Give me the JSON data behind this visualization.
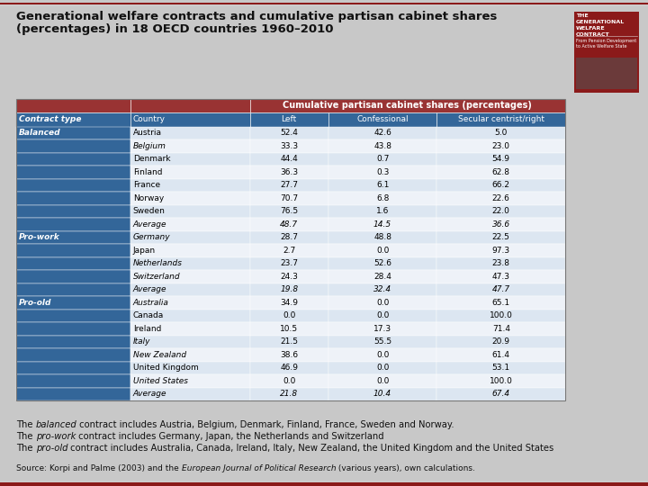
{
  "title_line1": "Generational welfare contracts and cumulative partisan cabinet shares",
  "title_line2": "(percentages) in 18 OECD countries 1960–2010",
  "bg_color": "#c8c8c8",
  "header_span_text": "Cumulative partisan cabinet shares (percentages)",
  "col_headers": [
    "Contract type",
    "Country",
    "Left",
    "Confessional",
    "Secular centrist/right"
  ],
  "sections": [
    {
      "label": "Balanced",
      "rows": [
        [
          "Austria",
          "52.4",
          "42.6",
          "5.0",
          false
        ],
        [
          "Belgium",
          "33.3",
          "43.8",
          "23.0",
          true
        ],
        [
          "Denmark",
          "44.4",
          "0.7",
          "54.9",
          false
        ],
        [
          "Finland",
          "36.3",
          "0.3",
          "62.8",
          false
        ],
        [
          "France",
          "27.7",
          "6.1",
          "66.2",
          false
        ],
        [
          "Norway",
          "70.7",
          "6.8",
          "22.6",
          false
        ],
        [
          "Sweden",
          "76.5",
          "1.6",
          "22.0",
          false
        ],
        [
          "Average",
          "48.7",
          "14.5",
          "36.6",
          true
        ]
      ]
    },
    {
      "label": "Pro-work",
      "rows": [
        [
          "Germany",
          "28.7",
          "48.8",
          "22.5",
          true
        ],
        [
          "Japan",
          "2.7",
          "0.0",
          "97.3",
          false
        ],
        [
          "Netherlands",
          "23.7",
          "52.6",
          "23.8",
          true
        ],
        [
          "Switzerland",
          "24.3",
          "28.4",
          "47.3",
          true
        ],
        [
          "Average",
          "19.8",
          "32.4",
          "47.7",
          true
        ]
      ]
    },
    {
      "label": "Pro-old",
      "rows": [
        [
          "Australia",
          "34.9",
          "0.0",
          "65.1",
          true
        ],
        [
          "Canada",
          "0.0",
          "0.0",
          "100.0",
          false
        ],
        [
          "Ireland",
          "10.5",
          "17.3",
          "71.4",
          false
        ],
        [
          "Italy",
          "21.5",
          "55.5",
          "20.9",
          true
        ],
        [
          "New Zealand",
          "38.6",
          "0.0",
          "61.4",
          true
        ],
        [
          "United Kingdom",
          "46.9",
          "0.0",
          "53.1",
          false
        ],
        [
          "United States",
          "0.0",
          "0.0",
          "100.0",
          true
        ],
        [
          "Average",
          "21.8",
          "10.4",
          "67.4",
          true
        ]
      ]
    }
  ],
  "header_bg": "#993333",
  "label_bg": "#336699",
  "row_bg_light": "#dce6f1",
  "row_bg_white": "#eef2f8",
  "col_header_bg": "#336699"
}
